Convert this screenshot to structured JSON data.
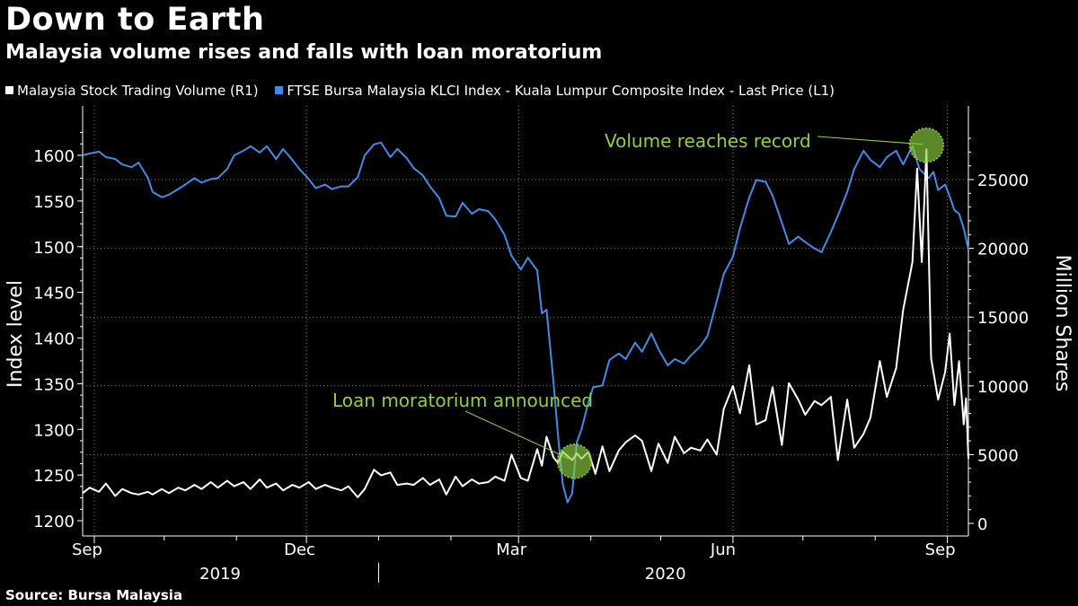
{
  "title": "Down to Earth",
  "subtitle": "Malaysia volume rises and falls with loan moratorium",
  "source": "Source: Bursa Malaysia",
  "colors": {
    "index": "#3f8ce8",
    "volume": "#ffffff",
    "annotation": "#8fd13f",
    "grid": "#7a7a7a"
  },
  "legend": [
    {
      "label": "Malaysia Stock Trading Volume (R1)",
      "color": "#ffffff"
    },
    {
      "label": "FTSE Bursa Malaysia KLCI Index - Kuala Lumpur Composite Index - Last Price (L1)",
      "color": "#3f8ce8"
    }
  ],
  "chart_data": {
    "type": "line",
    "title": "Down to Earth",
    "subtitle": "Malaysia volume rises and falls with loan moratorium",
    "ylabel_left": "Index level",
    "ylabel_right": "Million Shares",
    "ylim_left": [
      1190,
      1640
    ],
    "ylim_right": [
      0,
      30000
    ],
    "yticks_left": [
      1200,
      1250,
      1300,
      1350,
      1400,
      1450,
      1500,
      1550,
      1600
    ],
    "yticks_right": [
      0,
      5000,
      10000,
      15000,
      20000,
      25000
    ],
    "xlim": [
      "2019-08-27",
      "2020-09-10"
    ],
    "x_tick_labels": [
      {
        "date": "2019-09-01",
        "label": "Sep"
      },
      {
        "date": "2019-12-01",
        "label": "Dec"
      },
      {
        "date": "2020-03-01",
        "label": "Mar"
      },
      {
        "date": "2020-06-01",
        "label": "Jun"
      },
      {
        "date": "2020-09-01",
        "label": "Sep"
      }
    ],
    "x_minor_ticks": [
      "2019-10-01",
      "2019-11-01",
      "2020-01-01",
      "2020-02-01",
      "2020-04-01",
      "2020-05-01",
      "2020-07-01",
      "2020-08-01"
    ],
    "year_labels": [
      {
        "date": "2019-10-25",
        "label": "2019"
      },
      {
        "date": "2020-05-03",
        "label": "2020"
      }
    ],
    "year_divider": "2020-01-01",
    "grid": true,
    "legend_position": "top-left",
    "series": [
      {
        "name": "FTSE Bursa Malaysia KLCI Index - Kuala Lumpur Composite Index - Last Price (L1)",
        "axis": "left",
        "color": "#3f8ce8",
        "points": [
          [
            "2019-08-27",
            1600
          ],
          [
            "2019-08-30",
            1602
          ],
          [
            "2019-09-03",
            1604
          ],
          [
            "2019-09-06",
            1598
          ],
          [
            "2019-09-10",
            1596
          ],
          [
            "2019-09-13",
            1590
          ],
          [
            "2019-09-17",
            1587
          ],
          [
            "2019-09-20",
            1592
          ],
          [
            "2019-09-24",
            1575
          ],
          [
            "2019-09-26",
            1560
          ],
          [
            "2019-09-30",
            1554
          ],
          [
            "2019-10-03",
            1557
          ],
          [
            "2019-10-07",
            1563
          ],
          [
            "2019-10-10",
            1568
          ],
          [
            "2019-10-14",
            1575
          ],
          [
            "2019-10-17",
            1570
          ],
          [
            "2019-10-21",
            1574
          ],
          [
            "2019-10-24",
            1575
          ],
          [
            "2019-10-28",
            1585
          ],
          [
            "2019-10-31",
            1600
          ],
          [
            "2019-11-04",
            1605
          ],
          [
            "2019-11-07",
            1610
          ],
          [
            "2019-11-11",
            1603
          ],
          [
            "2019-11-14",
            1610
          ],
          [
            "2019-11-18",
            1596
          ],
          [
            "2019-11-21",
            1607
          ],
          [
            "2019-11-25",
            1595
          ],
          [
            "2019-11-28",
            1585
          ],
          [
            "2019-12-02",
            1574
          ],
          [
            "2019-12-05",
            1564
          ],
          [
            "2019-12-09",
            1568
          ],
          [
            "2019-12-12",
            1563
          ],
          [
            "2019-12-16",
            1566
          ],
          [
            "2019-12-19",
            1566
          ],
          [
            "2019-12-23",
            1576
          ],
          [
            "2019-12-26",
            1600
          ],
          [
            "2019-12-30",
            1612
          ],
          [
            "2020-01-02",
            1614
          ],
          [
            "2020-01-06",
            1598
          ],
          [
            "2020-01-09",
            1607
          ],
          [
            "2020-01-13",
            1597
          ],
          [
            "2020-01-16",
            1586
          ],
          [
            "2020-01-20",
            1578
          ],
          [
            "2020-01-23",
            1566
          ],
          [
            "2020-01-27",
            1553
          ],
          [
            "2020-01-30",
            1534
          ],
          [
            "2020-02-03",
            1533
          ],
          [
            "2020-02-06",
            1548
          ],
          [
            "2020-02-10",
            1536
          ],
          [
            "2020-02-13",
            1541
          ],
          [
            "2020-02-17",
            1539
          ],
          [
            "2020-02-20",
            1530
          ],
          [
            "2020-02-24",
            1513
          ],
          [
            "2020-02-27",
            1490
          ],
          [
            "2020-03-02",
            1475
          ],
          [
            "2020-03-05",
            1488
          ],
          [
            "2020-03-09",
            1474
          ],
          [
            "2020-03-11",
            1427
          ],
          [
            "2020-03-13",
            1431
          ],
          [
            "2020-03-16",
            1352
          ],
          [
            "2020-03-18",
            1292
          ],
          [
            "2020-03-20",
            1240
          ],
          [
            "2020-03-22",
            1220
          ],
          [
            "2020-03-24",
            1230
          ],
          [
            "2020-03-26",
            1286
          ],
          [
            "2020-03-28",
            1300
          ],
          [
            "2020-03-31",
            1330
          ],
          [
            "2020-04-02",
            1346
          ],
          [
            "2020-04-06",
            1348
          ],
          [
            "2020-04-09",
            1376
          ],
          [
            "2020-04-13",
            1383
          ],
          [
            "2020-04-16",
            1377
          ],
          [
            "2020-04-20",
            1395
          ],
          [
            "2020-04-23",
            1385
          ],
          [
            "2020-04-27",
            1405
          ],
          [
            "2020-04-30",
            1388
          ],
          [
            "2020-05-04",
            1370
          ],
          [
            "2020-05-07",
            1377
          ],
          [
            "2020-05-11",
            1372
          ],
          [
            "2020-05-14",
            1381
          ],
          [
            "2020-05-18",
            1391
          ],
          [
            "2020-05-21",
            1402
          ],
          [
            "2020-05-25",
            1440
          ],
          [
            "2020-05-28",
            1470
          ],
          [
            "2020-06-01",
            1489
          ],
          [
            "2020-06-04",
            1520
          ],
          [
            "2020-06-08",
            1554
          ],
          [
            "2020-06-11",
            1573
          ],
          [
            "2020-06-15",
            1571
          ],
          [
            "2020-06-18",
            1556
          ],
          [
            "2020-06-22",
            1526
          ],
          [
            "2020-06-25",
            1503
          ],
          [
            "2020-06-29",
            1511
          ],
          [
            "2020-07-02",
            1505
          ],
          [
            "2020-07-06",
            1498
          ],
          [
            "2020-07-09",
            1494
          ],
          [
            "2020-07-13",
            1516
          ],
          [
            "2020-07-16",
            1534
          ],
          [
            "2020-07-20",
            1560
          ],
          [
            "2020-07-23",
            1585
          ],
          [
            "2020-07-27",
            1605
          ],
          [
            "2020-07-30",
            1595
          ],
          [
            "2020-08-03",
            1587
          ],
          [
            "2020-08-06",
            1598
          ],
          [
            "2020-08-10",
            1605
          ],
          [
            "2020-08-13",
            1590
          ],
          [
            "2020-08-17",
            1610
          ],
          [
            "2020-08-20",
            1585
          ],
          [
            "2020-08-24",
            1575
          ],
          [
            "2020-08-26",
            1582
          ],
          [
            "2020-08-28",
            1562
          ],
          [
            "2020-08-31",
            1568
          ],
          [
            "2020-09-02",
            1555
          ],
          [
            "2020-09-04",
            1540
          ],
          [
            "2020-09-06",
            1536
          ],
          [
            "2020-09-08",
            1520
          ],
          [
            "2020-09-10",
            1497
          ]
        ]
      },
      {
        "name": "Malaysia Stock Trading Volume (R1)",
        "axis": "right",
        "color": "#ffffff",
        "points": [
          [
            "2019-08-27",
            2200
          ],
          [
            "2019-08-30",
            2600
          ],
          [
            "2019-09-03",
            2300
          ],
          [
            "2019-09-06",
            2900
          ],
          [
            "2019-09-10",
            2000
          ],
          [
            "2019-09-13",
            2500
          ],
          [
            "2019-09-17",
            2200
          ],
          [
            "2019-09-20",
            2100
          ],
          [
            "2019-09-24",
            2300
          ],
          [
            "2019-09-26",
            2100
          ],
          [
            "2019-09-30",
            2500
          ],
          [
            "2019-10-03",
            2200
          ],
          [
            "2019-10-07",
            2600
          ],
          [
            "2019-10-10",
            2400
          ],
          [
            "2019-10-14",
            2800
          ],
          [
            "2019-10-17",
            2500
          ],
          [
            "2019-10-21",
            3000
          ],
          [
            "2019-10-24",
            2600
          ],
          [
            "2019-10-28",
            3100
          ],
          [
            "2019-10-31",
            2700
          ],
          [
            "2019-11-04",
            3000
          ],
          [
            "2019-11-07",
            2500
          ],
          [
            "2019-11-11",
            3200
          ],
          [
            "2019-11-14",
            2600
          ],
          [
            "2019-11-18",
            2900
          ],
          [
            "2019-11-21",
            2400
          ],
          [
            "2019-11-25",
            2800
          ],
          [
            "2019-11-28",
            2600
          ],
          [
            "2019-12-02",
            3000
          ],
          [
            "2019-12-05",
            2500
          ],
          [
            "2019-12-09",
            2800
          ],
          [
            "2019-12-12",
            2600
          ],
          [
            "2019-12-16",
            2400
          ],
          [
            "2019-12-19",
            2700
          ],
          [
            "2019-12-23",
            1900
          ],
          [
            "2019-12-26",
            2500
          ],
          [
            "2019-12-30",
            3900
          ],
          [
            "2020-01-02",
            3500
          ],
          [
            "2020-01-06",
            3700
          ],
          [
            "2020-01-09",
            2800
          ],
          [
            "2020-01-13",
            2900
          ],
          [
            "2020-01-16",
            2800
          ],
          [
            "2020-01-20",
            3300
          ],
          [
            "2020-01-23",
            2800
          ],
          [
            "2020-01-27",
            3200
          ],
          [
            "2020-01-30",
            2100
          ],
          [
            "2020-02-03",
            3400
          ],
          [
            "2020-02-06",
            2700
          ],
          [
            "2020-02-10",
            3200
          ],
          [
            "2020-02-13",
            2900
          ],
          [
            "2020-02-17",
            3000
          ],
          [
            "2020-02-20",
            3400
          ],
          [
            "2020-02-24",
            3100
          ],
          [
            "2020-02-27",
            5000
          ],
          [
            "2020-03-02",
            3300
          ],
          [
            "2020-03-05",
            3100
          ],
          [
            "2020-03-09",
            5400
          ],
          [
            "2020-03-11",
            4200
          ],
          [
            "2020-03-13",
            6300
          ],
          [
            "2020-03-16",
            4800
          ],
          [
            "2020-03-18",
            4400
          ],
          [
            "2020-03-20",
            5200
          ],
          [
            "2020-03-24",
            4600
          ],
          [
            "2020-03-26",
            5100
          ],
          [
            "2020-03-28",
            4700
          ],
          [
            "2020-03-31",
            5200
          ],
          [
            "2020-04-03",
            3600
          ],
          [
            "2020-04-06",
            5600
          ],
          [
            "2020-04-09",
            3800
          ],
          [
            "2020-04-13",
            5300
          ],
          [
            "2020-04-16",
            5900
          ],
          [
            "2020-04-20",
            6400
          ],
          [
            "2020-04-23",
            6000
          ],
          [
            "2020-04-27",
            3800
          ],
          [
            "2020-04-30",
            5800
          ],
          [
            "2020-05-04",
            4400
          ],
          [
            "2020-05-07",
            6300
          ],
          [
            "2020-05-11",
            5100
          ],
          [
            "2020-05-14",
            5500
          ],
          [
            "2020-05-18",
            5300
          ],
          [
            "2020-05-21",
            6100
          ],
          [
            "2020-05-25",
            5000
          ],
          [
            "2020-05-28",
            8300
          ],
          [
            "2020-06-01",
            10000
          ],
          [
            "2020-06-04",
            8000
          ],
          [
            "2020-06-08",
            11500
          ],
          [
            "2020-06-11",
            7200
          ],
          [
            "2020-06-15",
            7500
          ],
          [
            "2020-06-18",
            9900
          ],
          [
            "2020-06-22",
            5700
          ],
          [
            "2020-06-25",
            10200
          ],
          [
            "2020-06-29",
            9000
          ],
          [
            "2020-07-02",
            7900
          ],
          [
            "2020-07-06",
            8900
          ],
          [
            "2020-07-09",
            8600
          ],
          [
            "2020-07-13",
            9200
          ],
          [
            "2020-07-16",
            4600
          ],
          [
            "2020-07-20",
            9000
          ],
          [
            "2020-07-23",
            5500
          ],
          [
            "2020-07-27",
            6500
          ],
          [
            "2020-07-30",
            7700
          ],
          [
            "2020-08-03",
            11800
          ],
          [
            "2020-08-06",
            9200
          ],
          [
            "2020-08-10",
            11300
          ],
          [
            "2020-08-13",
            15500
          ],
          [
            "2020-08-17",
            19000
          ],
          [
            "2020-08-19",
            25800
          ],
          [
            "2020-08-21",
            19000
          ],
          [
            "2020-08-23",
            27200
          ],
          [
            "2020-08-25",
            12000
          ],
          [
            "2020-08-28",
            9000
          ],
          [
            "2020-08-31",
            11000
          ],
          [
            "2020-09-02",
            13800
          ],
          [
            "2020-09-04",
            8600
          ],
          [
            "2020-09-06",
            11800
          ],
          [
            "2020-09-08",
            7200
          ],
          [
            "2020-09-09",
            9100
          ],
          [
            "2020-09-10",
            4700
          ]
        ]
      }
    ],
    "annotations": [
      {
        "label": "Loan moratorium announced",
        "marker_date": "2020-03-25",
        "marker_value": 1265,
        "axis": "left"
      },
      {
        "label": "Volume reaches record",
        "marker_date": "2020-08-23",
        "marker_value": 27500,
        "axis": "right"
      }
    ]
  }
}
